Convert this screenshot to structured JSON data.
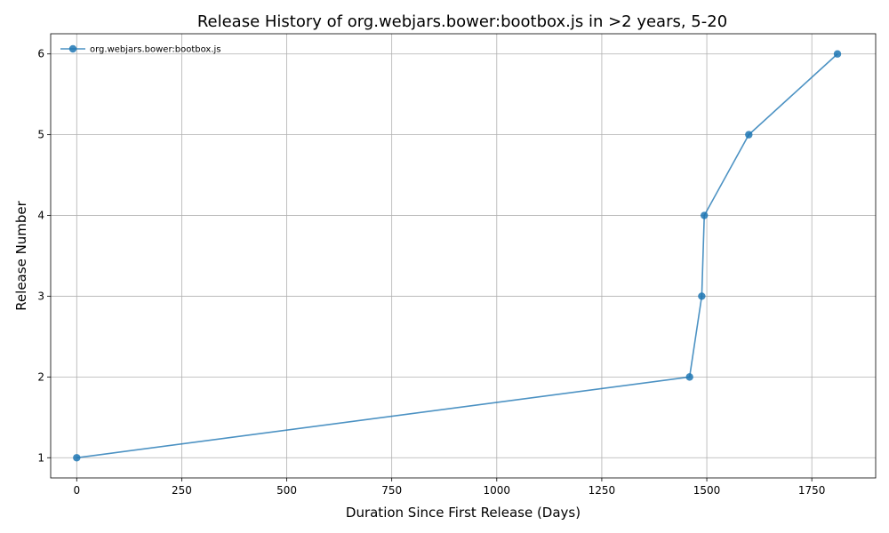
{
  "chart_data": {
    "type": "line",
    "title": "Release History of org.webjars.bower:bootbox.js in >2 years, 5-20",
    "xlabel": "Duration Since First Release (Days)",
    "ylabel": "Release Number",
    "xlim": [
      -62,
      1902
    ],
    "ylim": [
      0.75,
      6.25
    ],
    "xticks": [
      0,
      250,
      500,
      750,
      1000,
      1250,
      1500,
      1750
    ],
    "yticks": [
      1,
      2,
      3,
      4,
      5,
      6
    ],
    "grid": true,
    "legend_position": "top-left",
    "series": [
      {
        "name": "org.webjars.bower:bootbox.js",
        "color": "#1f77b4",
        "marker": "circle",
        "x": [
          0,
          1459,
          1488,
          1494,
          1600,
          1811
        ],
        "y": [
          1,
          2,
          3,
          4,
          5,
          6
        ]
      }
    ]
  }
}
